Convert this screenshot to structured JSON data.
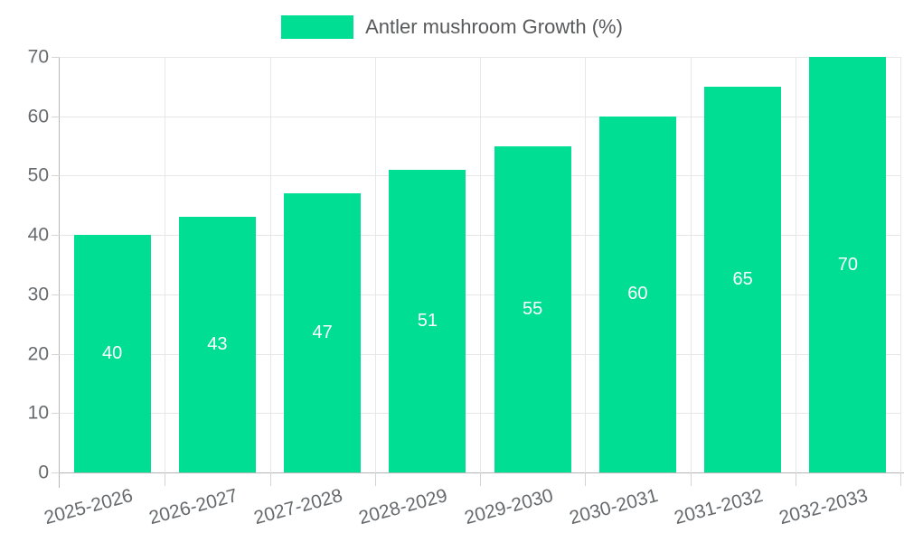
{
  "legend": {
    "label": "Antler mushroom Growth (%)"
  },
  "colors": {
    "bar": "#00DE94",
    "grid": "#e7e7e7",
    "axis": "#b6b6b6",
    "tick": "#d4d4d4",
    "axis_label": "#666a6d",
    "legend_text": "#58595b",
    "bar_label": "#ffffff"
  },
  "chart_data": {
    "type": "bar",
    "title": "",
    "xlabel": "",
    "ylabel": "",
    "categories": [
      "2025-2026",
      "2026-2027",
      "2027-2028",
      "2028-2029",
      "2029-2030",
      "2030-2031",
      "2031-2032",
      "2032-2033"
    ],
    "series": [
      {
        "name": "Antler mushroom Growth (%)",
        "values": [
          40,
          43,
          47,
          51,
          55,
          60,
          65,
          70
        ]
      }
    ],
    "data_labels": [
      40,
      43,
      47,
      51,
      55,
      60,
      65,
      70
    ],
    "ylim": [
      0,
      70
    ],
    "yticks": [
      0,
      10,
      20,
      30,
      40,
      50,
      60,
      70
    ],
    "grid": true,
    "legend_position": "top"
  }
}
